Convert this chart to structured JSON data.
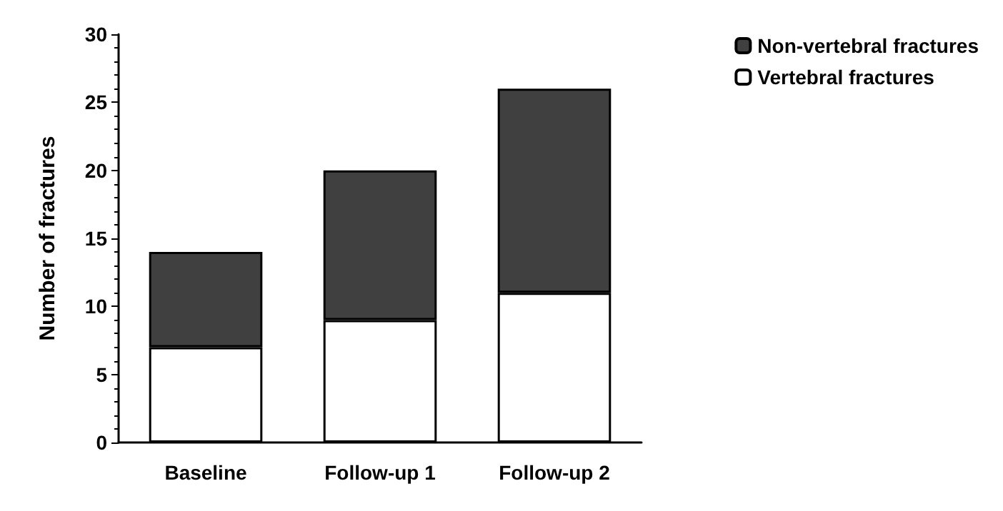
{
  "chart_data": {
    "type": "bar",
    "stacked": true,
    "ylabel": "Number of fractures",
    "categories": [
      "Baseline",
      "Follow-up 1",
      "Follow-up 2"
    ],
    "series": [
      {
        "name": "Vertebral fractures",
        "color": "#ffffff",
        "values": [
          7,
          9,
          11
        ]
      },
      {
        "name": "Non-vertebral fractures",
        "color": "#404040",
        "values": [
          7,
          11,
          15
        ]
      }
    ],
    "ylim": [
      0,
      30
    ],
    "yticks": [
      0,
      5,
      10,
      15,
      20,
      25,
      30
    ],
    "grid": false,
    "legend": "top right"
  }
}
